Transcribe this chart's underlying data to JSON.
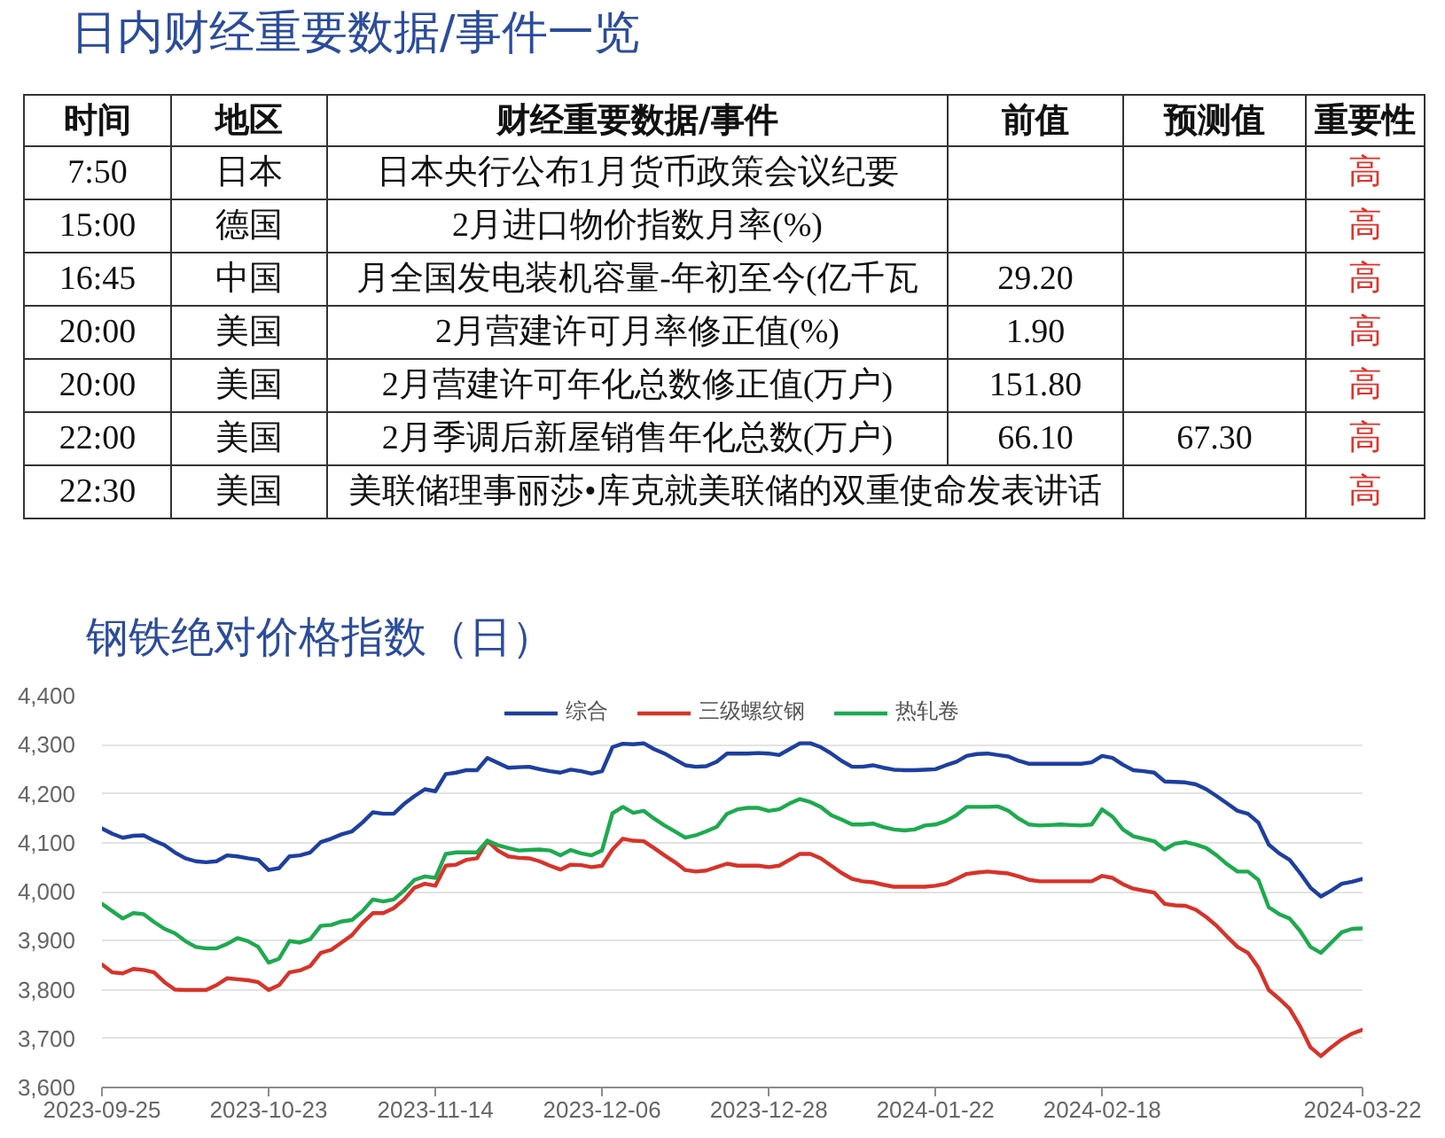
{
  "chart_data": [
    {
      "type": "other",
      "title": "日内财经重要数据/事件一览",
      "categories": [
        "时间",
        "地区",
        "财经重要数据/事件",
        "前值",
        "预测值",
        "重要性"
      ],
      "color": "#e0322c",
      "cell_labels": [
        [
          "7:50",
          "日本",
          "日本央行公布1月货币政策会议纪要",
          null,
          null,
          "高"
        ],
        [
          "15:00",
          "德国",
          "2月进口物价指数月率(%)",
          null,
          null,
          "高"
        ],
        [
          "16:45",
          "中国",
          "月全国发电装机容量-年初至今(亿千瓦",
          "29.20",
          null,
          "高"
        ],
        [
          "20:00",
          "美国",
          "2月营建许可月率修正值(%)",
          "1.90",
          null,
          "高"
        ],
        [
          "20:00",
          "美国",
          "2月营建许可年化总数修正值(万户)",
          "151.80",
          null,
          "高"
        ],
        [
          "22:00",
          "美国",
          "2月季调后新屋销售年化总数(万户)",
          "66.10",
          "67.30",
          "高"
        ],
        [
          "22:30",
          "美国",
          "美联储理事丽莎•库克就美联储的双重使命发表讲话",
          null,
          null,
          "高"
        ]
      ]
    },
    {
      "type": "line",
      "title": "钢铁绝对价格指数（日）",
      "categories": [
        "2023-09-25",
        null,
        null,
        null,
        null,
        null,
        null,
        null,
        null,
        null,
        null,
        null,
        null,
        null,
        null,
        null,
        "2023-10-23",
        null,
        null,
        null,
        null,
        null,
        null,
        null,
        null,
        null,
        null,
        null,
        null,
        null,
        null,
        null,
        "2023-11-14",
        null,
        null,
        null,
        null,
        null,
        null,
        null,
        null,
        null,
        null,
        null,
        null,
        null,
        null,
        null,
        "2023-12-06",
        null,
        null,
        null,
        null,
        null,
        null,
        null,
        null,
        null,
        null,
        null,
        null,
        null,
        null,
        null,
        "2023-12-28",
        null,
        null,
        null,
        null,
        null,
        null,
        null,
        null,
        null,
        null,
        null,
        null,
        null,
        null,
        null,
        "2024-01-22",
        null,
        null,
        null,
        null,
        null,
        null,
        null,
        null,
        null,
        null,
        null,
        null,
        null,
        null,
        null,
        "2024-02-18",
        null,
        null,
        null,
        null,
        null,
        null,
        null,
        null,
        null,
        null,
        null,
        null,
        null,
        null,
        null,
        null,
        null,
        null,
        null,
        null,
        null,
        null,
        null,
        null,
        "2024-03-22"
      ],
      "series": [
        {
          "name": "综合",
          "color": "#1e3fa0",
          "values": [
            4129,
            4118,
            4110,
            4114,
            4115,
            4104,
            4095,
            4080,
            4068,
            4062,
            4060,
            4062,
            4074,
            4072,
            4068,
            4065,
            4044,
            4048,
            4072,
            4074,
            4080,
            4101,
            4108,
            4117,
            4123,
            4141,
            4162,
            4159,
            4159,
            4179,
            4195,
            4209,
            4205,
            4240,
            4243,
            4248,
            4248,
            4273,
            4263,
            4253,
            4254,
            4255,
            4250,
            4246,
            4243,
            4249,
            4246,
            4241,
            4246,
            4295,
            4302,
            4301,
            4303,
            4291,
            4282,
            4270,
            4258,
            4255,
            4256,
            4265,
            4282,
            4282,
            4282,
            4283,
            4282,
            4279,
            4291,
            4303,
            4303,
            4295,
            4282,
            4267,
            4255,
            4255,
            4258,
            4253,
            4249,
            4248,
            4248,
            4249,
            4250,
            4258,
            4265,
            4277,
            4281,
            4282,
            4279,
            4276,
            4267,
            4261,
            4261,
            4261,
            4261,
            4261,
            4261,
            4264,
            4277,
            4273,
            4259,
            4248,
            4246,
            4243,
            4225,
            4224,
            4223,
            4219,
            4209,
            4195,
            4180,
            4165,
            4159,
            4141,
            4096,
            4078,
            4065,
            4038,
            4008,
            3990,
            4002,
            4016,
            4020,
            4026
          ]
        },
        {
          "name": "三级螺纹钢",
          "color": "#d7332a",
          "values": [
            3851,
            3835,
            3833,
            3842,
            3840,
            3835,
            3815,
            3800,
            3799,
            3799,
            3799,
            3809,
            3823,
            3821,
            3819,
            3815,
            3799,
            3809,
            3835,
            3839,
            3848,
            3875,
            3881,
            3896,
            3911,
            3936,
            3956,
            3956,
            3966,
            3984,
            4008,
            4016,
            4012,
            4053,
            4055,
            4065,
            4068,
            4104,
            4084,
            4072,
            4069,
            4068,
            4062,
            4053,
            4045,
            4055,
            4054,
            4050,
            4053,
            4086,
            4108,
            4104,
            4103,
            4089,
            4074,
            4060,
            4044,
            4041,
            4043,
            4050,
            4057,
            4053,
            4053,
            4053,
            4050,
            4053,
            4065,
            4077,
            4077,
            4068,
            4053,
            4038,
            4026,
            4021,
            4019,
            4014,
            4010,
            4010,
            4010,
            4010,
            4012,
            4016,
            4026,
            4036,
            4039,
            4041,
            4039,
            4037,
            4031,
            4024,
            4021,
            4021,
            4021,
            4021,
            4021,
            4021,
            4032,
            4028,
            4015,
            4006,
            4002,
            3998,
            3975,
            3972,
            3971,
            3963,
            3948,
            3930,
            3908,
            3887,
            3875,
            3845,
            3799,
            3781,
            3761,
            3725,
            3682,
            3664,
            3682,
            3698,
            3710,
            3718
          ]
        },
        {
          "name": "热轧卷",
          "color": "#1daa4f",
          "values": [
            3975,
            3960,
            3945,
            3956,
            3954,
            3938,
            3924,
            3915,
            3899,
            3887,
            3884,
            3884,
            3893,
            3905,
            3899,
            3887,
            3855,
            3863,
            3899,
            3896,
            3903,
            3930,
            3932,
            3939,
            3942,
            3960,
            3984,
            3980,
            3984,
            4002,
            4024,
            4031,
            4028,
            4077,
            4080,
            4080,
            4080,
            4104,
            4095,
            4089,
            4084,
            4085,
            4086,
            4084,
            4074,
            4085,
            4078,
            4074,
            4084,
            4160,
            4173,
            4161,
            4165,
            4149,
            4135,
            4123,
            4110,
            4115,
            4123,
            4132,
            4159,
            4168,
            4171,
            4171,
            4165,
            4168,
            4180,
            4189,
            4183,
            4173,
            4156,
            4147,
            4137,
            4137,
            4139,
            4132,
            4127,
            4125,
            4127,
            4135,
            4137,
            4144,
            4156,
            4173,
            4173,
            4173,
            4174,
            4165,
            4149,
            4137,
            4135,
            4136,
            4137,
            4136,
            4135,
            4137,
            4168,
            4153,
            4127,
            4113,
            4108,
            4103,
            4086,
            4098,
            4101,
            4096,
            4089,
            4074,
            4056,
            4041,
            4041,
            4024,
            3968,
            3954,
            3945,
            3920,
            3887,
            3875,
            3896,
            3917,
            3924,
            3925
          ]
        }
      ],
      "ylim": [
        3600,
        4400
      ],
      "yticks": [
        {
          "value": 3600,
          "label": "3,600"
        },
        {
          "value": 3700,
          "label": "3,700"
        },
        {
          "value": 3800,
          "label": "3,800"
        },
        {
          "value": 3900,
          "label": "3,900"
        },
        {
          "value": 4000,
          "label": "4,000"
        },
        {
          "value": 4100,
          "label": "4,100"
        },
        {
          "value": 4200,
          "label": "4,200"
        },
        {
          "value": 4300,
          "label": "4,300"
        },
        {
          "value": 4400,
          "label": "4,400"
        }
      ],
      "grid": "y",
      "legend": "top",
      "line_style": "solid"
    }
  ]
}
